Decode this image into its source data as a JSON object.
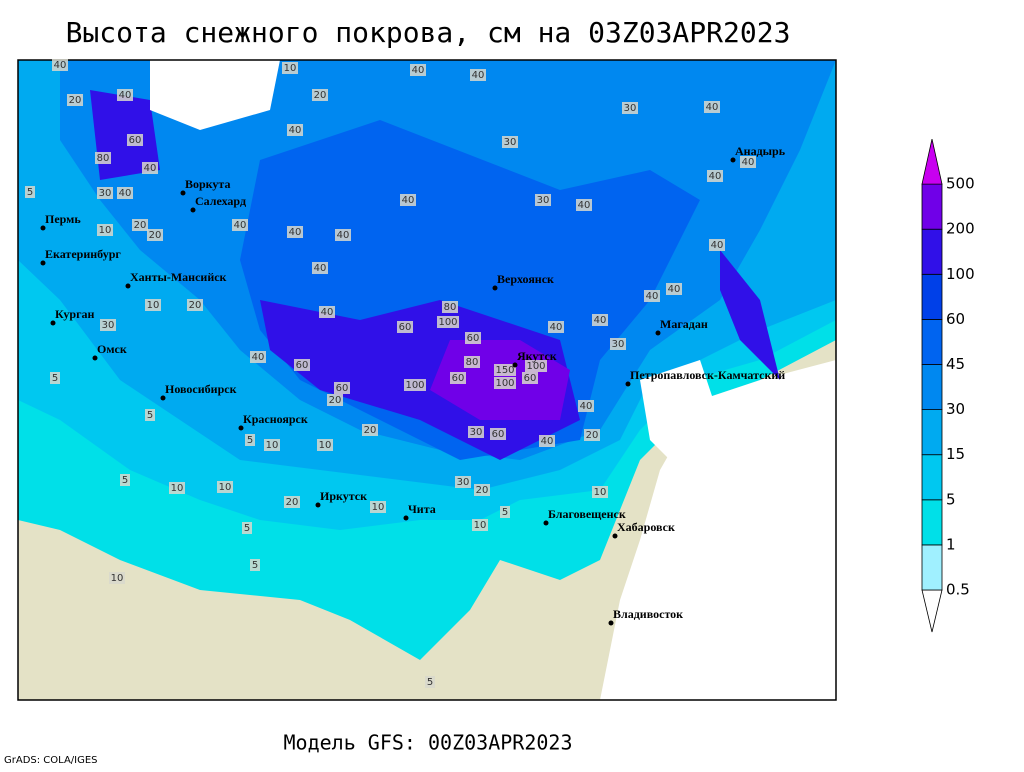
{
  "map": {
    "title": "Высота снежного покрова, см на 03Z03APR2023",
    "footer": "Модель GFS: 00Z03APR2023",
    "credit": "GrADS: COLA/IGES",
    "legend": {
      "levels": [
        0.5,
        1,
        5,
        15,
        30,
        45,
        60,
        100,
        200,
        500
      ],
      "colors": [
        "#ffffff",
        "#a0f0ff",
        "#00e0e8",
        "#00c8f0",
        "#00aaf0",
        "#0088f0",
        "#0064f0",
        "#0040e8",
        "#3010e8",
        "#7000e8",
        "#c800f0"
      ]
    },
    "cities": [
      "Воркута",
      "Салехард",
      "Пермь",
      "Екатеринбург",
      "Ханты-Мансийск",
      "Курган",
      "Омск",
      "Новосибирск",
      "Красноярск",
      "Иркутск",
      "Чита",
      "Благовещенск",
      "Хабаровск",
      "Владивосток",
      "Якутск",
      "Верхоянск",
      "Магадан",
      "Петропавловск-Камчатский",
      "Анадырь"
    ],
    "contour_labels": [
      40,
      20,
      40,
      60,
      80,
      40,
      30,
      40,
      20,
      20,
      10,
      40,
      40,
      40,
      20,
      10,
      40,
      40,
      30,
      40,
      30,
      40,
      30,
      40,
      40,
      40,
      40,
      20,
      10,
      40,
      60,
      60,
      80,
      100,
      60,
      100,
      150,
      100,
      60,
      80,
      60,
      100,
      60,
      20,
      20,
      10,
      10,
      5,
      5,
      10,
      10,
      20,
      10,
      30,
      20,
      10,
      10,
      5,
      40,
      40,
      30,
      40,
      20,
      40,
      60,
      30,
      40,
      40,
      40,
      40,
      40,
      5,
      5,
      10,
      5,
      5,
      5,
      30,
      5
    ]
  }
}
